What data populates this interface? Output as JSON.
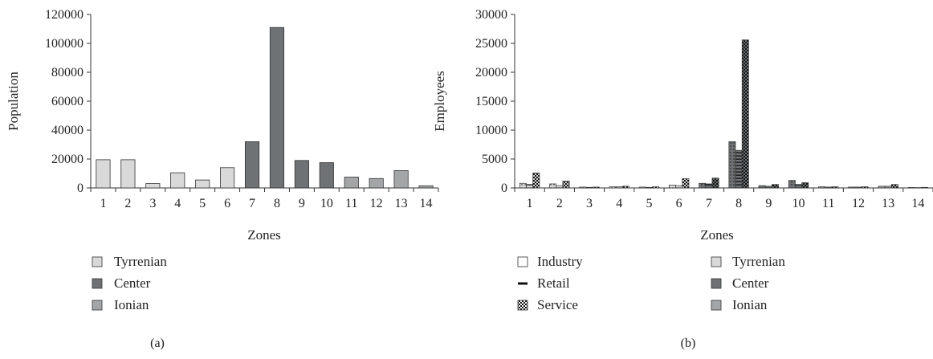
{
  "colors": {
    "tyrrenian": "#d9d9d9",
    "center": "#6f7274",
    "ionian": "#a3a5a7",
    "industry": "#ffffff",
    "stroke": "#333333"
  },
  "chart_data": [
    {
      "type": "bar",
      "panel_label": "(a)",
      "xlabel": "Zones",
      "ylabel": "Population",
      "ylim": [
        0,
        120000
      ],
      "yticks": [
        "0",
        "20000",
        "40000",
        "60000",
        "80000",
        "100000",
        "120000"
      ],
      "yticks_values": [
        0,
        20000,
        40000,
        60000,
        80000,
        100000,
        120000
      ],
      "categories": [
        "1",
        "2",
        "3",
        "4",
        "5",
        "6",
        "7",
        "8",
        "9",
        "10",
        "11",
        "12",
        "13",
        "14"
      ],
      "values": [
        19500,
        19500,
        3000,
        10500,
        5500,
        14000,
        32000,
        111000,
        19000,
        17500,
        7500,
        6500,
        12000,
        1500
      ],
      "zone_group": [
        "tyrrenian",
        "tyrrenian",
        "tyrrenian",
        "tyrrenian",
        "tyrrenian",
        "tyrrenian",
        "center",
        "center",
        "center",
        "center",
        "ionian",
        "ionian",
        "ionian",
        "ionian"
      ],
      "legend": [
        {
          "key": "tyrrenian",
          "label": "Tyrrenian"
        },
        {
          "key": "center",
          "label": "Center"
        },
        {
          "key": "ionian",
          "label": "Ionian"
        }
      ]
    },
    {
      "type": "bar",
      "panel_label": "(b)",
      "xlabel": "Zones",
      "ylabel": "Employees",
      "ylim": [
        0,
        30000
      ],
      "yticks": [
        "0",
        "5000",
        "10000",
        "15000",
        "20000",
        "25000",
        "30000"
      ],
      "yticks_values": [
        0,
        5000,
        10000,
        15000,
        20000,
        25000,
        30000
      ],
      "categories": [
        "1",
        "2",
        "3",
        "4",
        "5",
        "6",
        "7",
        "8",
        "9",
        "10",
        "11",
        "12",
        "13",
        "14"
      ],
      "zone_group": [
        "tyrrenian",
        "tyrrenian",
        "tyrrenian",
        "tyrrenian",
        "tyrrenian",
        "tyrrenian",
        "center",
        "center",
        "center",
        "center",
        "ionian",
        "ionian",
        "ionian",
        "ionian"
      ],
      "series": [
        {
          "name": "Industry",
          "key": "industry",
          "values": [
            800,
            700,
            150,
            200,
            150,
            500,
            800,
            8000,
            400,
            1300,
            200,
            150,
            300,
            80
          ]
        },
        {
          "name": "Retail",
          "key": "retail",
          "values": [
            600,
            400,
            100,
            200,
            100,
            400,
            700,
            6500,
            300,
            600,
            150,
            150,
            300,
            60
          ]
        },
        {
          "name": "Service",
          "key": "service",
          "values": [
            2600,
            1200,
            150,
            300,
            200,
            1600,
            1700,
            25600,
            600,
            900,
            200,
            200,
            600,
            100
          ]
        }
      ],
      "legend_series": [
        {
          "key": "industry",
          "label": "Industry"
        },
        {
          "key": "retail",
          "label": "Retail"
        },
        {
          "key": "service",
          "label": "Service"
        }
      ],
      "legend_zones": [
        {
          "key": "tyrrenian",
          "label": "Tyrrenian"
        },
        {
          "key": "center",
          "label": "Center"
        },
        {
          "key": "ionian",
          "label": "Ionian"
        }
      ]
    }
  ]
}
